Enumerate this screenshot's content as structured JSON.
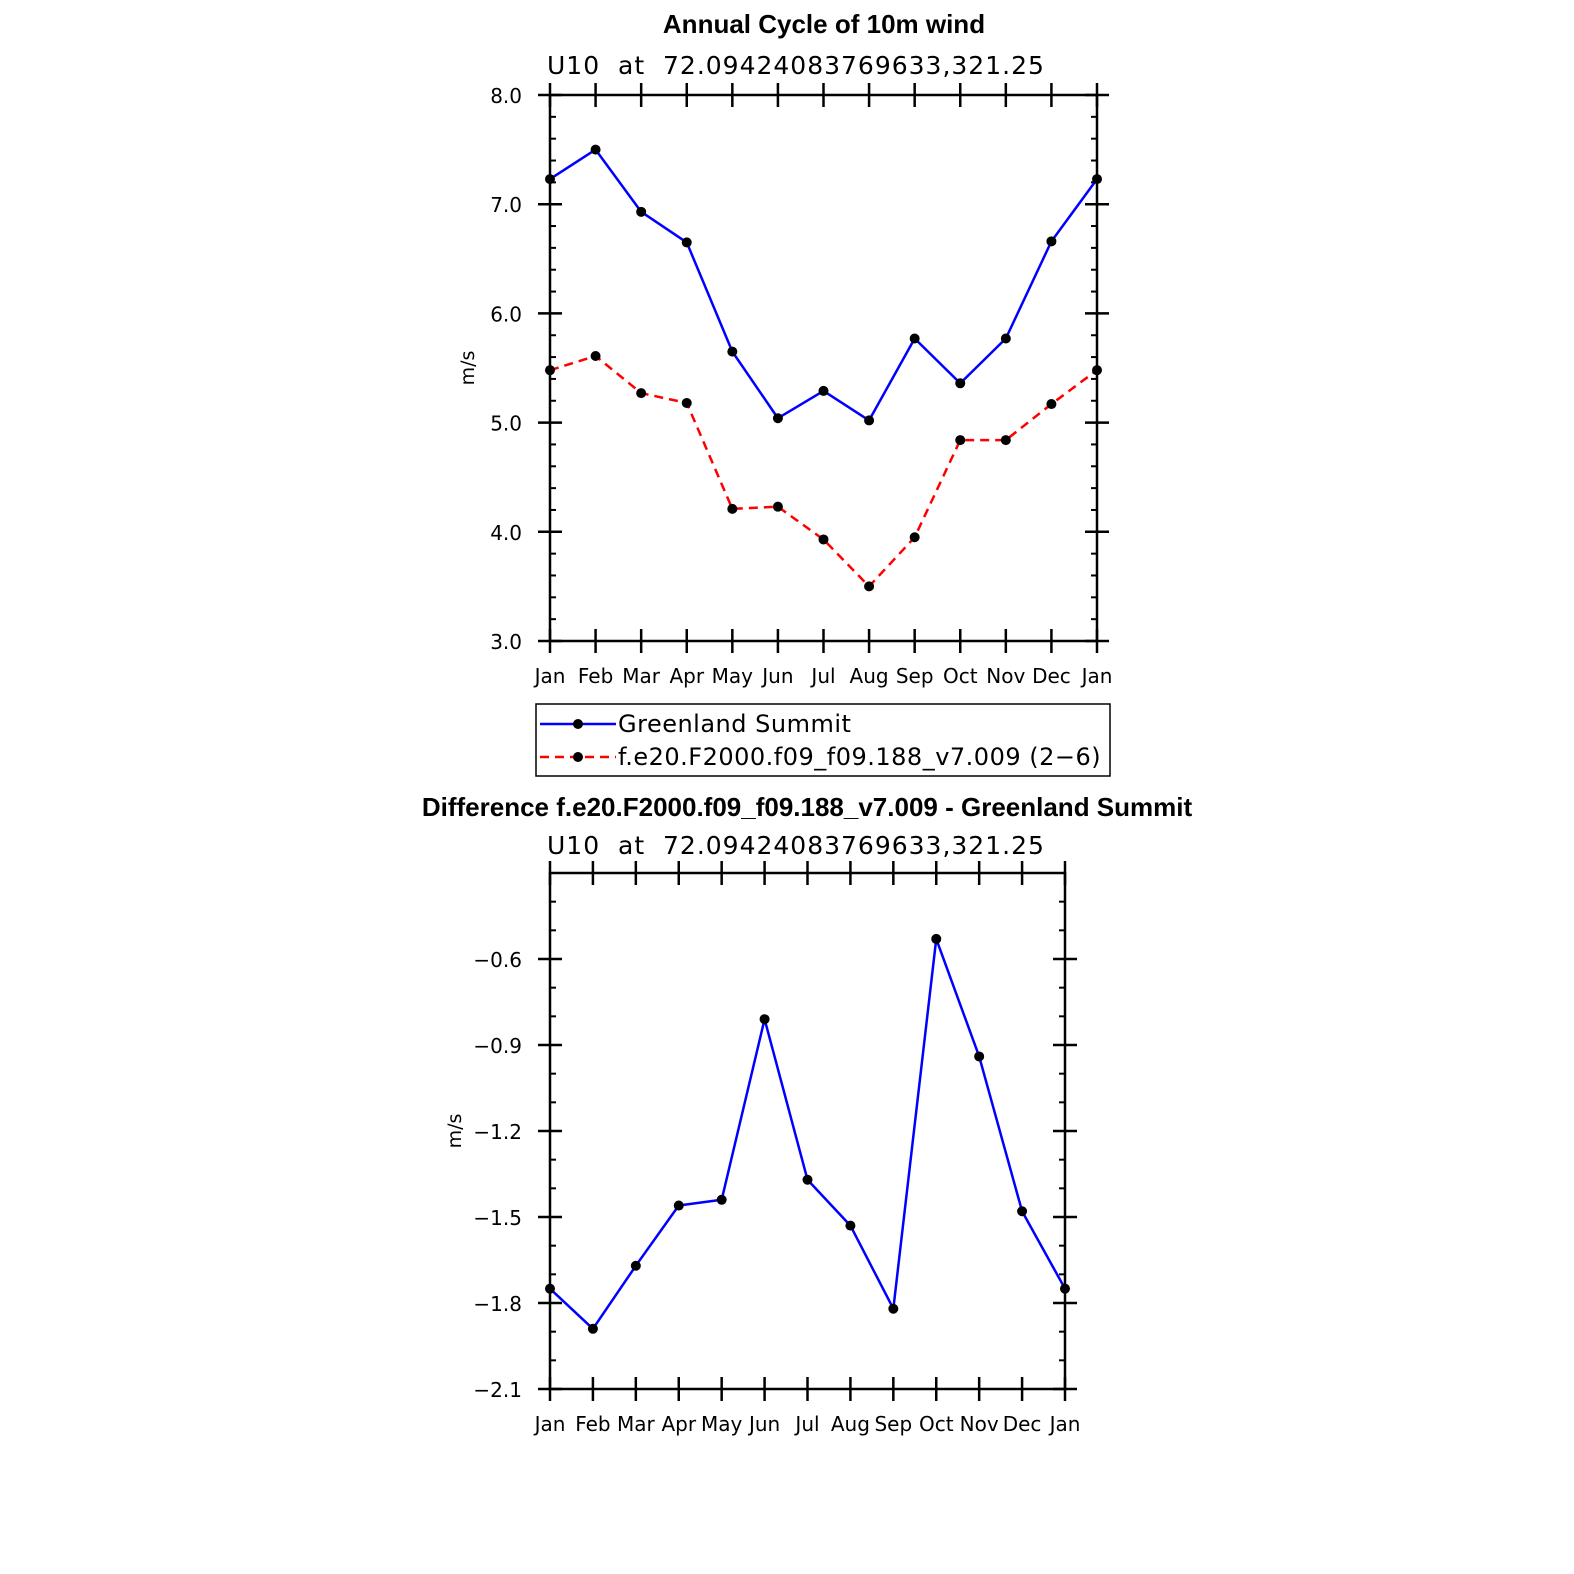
{
  "chart_data": [
    {
      "type": "line",
      "title": "Annual Cycle of 10m wind",
      "subtitle": "U10  at  72.09424083769633,321.25",
      "xlabel": "",
      "ylabel": "m/s",
      "categories": [
        "Jan",
        "Feb",
        "Mar",
        "Apr",
        "May",
        "Jun",
        "Jul",
        "Aug",
        "Sep",
        "Oct",
        "Nov",
        "Dec",
        "Jan"
      ],
      "ylim": [
        3.0,
        8.0
      ],
      "yticks": [
        "3.0",
        "4.0",
        "5.0",
        "6.0",
        "7.0",
        "8.0"
      ],
      "ytick_values": [
        3.0,
        4.0,
        5.0,
        6.0,
        7.0,
        8.0
      ],
      "yminor_step": 0.2,
      "legend_position": "bottom",
      "series": [
        {
          "name": "Greenland Summit",
          "color": "#0000ff",
          "dash": "solid",
          "values": [
            7.23,
            7.5,
            6.93,
            6.65,
            5.65,
            5.04,
            5.29,
            5.02,
            5.77,
            5.36,
            5.77,
            6.66,
            7.23
          ]
        },
        {
          "name": "f.e20.F2000.f09_f09.188_v7.009 (2−6)",
          "color": "#ff0000",
          "dash": "dashed",
          "values": [
            5.48,
            5.61,
            5.27,
            5.18,
            4.21,
            4.23,
            3.93,
            3.5,
            3.95,
            4.84,
            4.84,
            5.17,
            5.48
          ]
        }
      ]
    },
    {
      "type": "line",
      "title": "Difference f.e20.F2000.f09_f09.188_v7.009 - Greenland Summit",
      "subtitle": "U10  at  72.09424083769633,321.25",
      "xlabel": "",
      "ylabel": "m/s",
      "categories": [
        "Jan",
        "Feb",
        "Mar",
        "Apr",
        "May",
        "Jun",
        "Jul",
        "Aug",
        "Sep",
        "Oct",
        "Nov",
        "Dec",
        "Jan"
      ],
      "ylim": [
        -2.1,
        -0.3
      ],
      "yticks": [
        "−2.1",
        "−1.8",
        "−1.5",
        "−1.2",
        "−0.9",
        "−0.6"
      ],
      "ytick_values": [
        -2.1,
        -1.8,
        -1.5,
        -1.2,
        -0.9,
        -0.6
      ],
      "yminor_step": 0.1,
      "series": [
        {
          "name": "Difference",
          "color": "#0000ff",
          "dash": "solid",
          "values": [
            -1.75,
            -1.89,
            -1.67,
            -1.46,
            -1.44,
            -0.81,
            -1.37,
            -1.53,
            -1.82,
            -0.53,
            -0.94,
            -1.48,
            -1.75
          ]
        }
      ]
    }
  ]
}
